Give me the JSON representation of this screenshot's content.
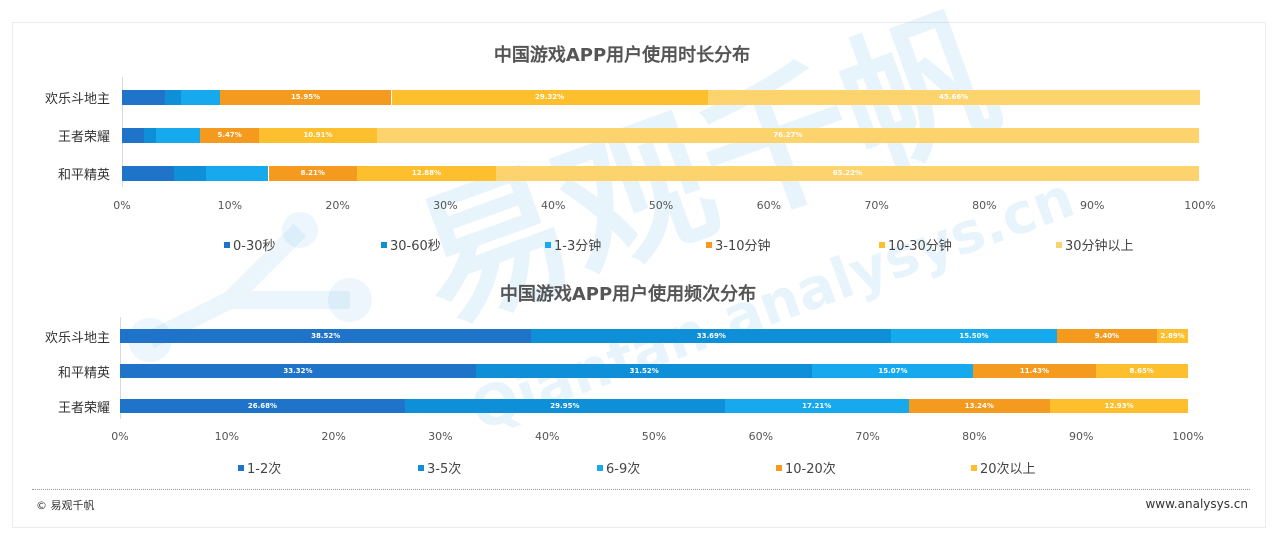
{
  "chart_data": [
    {
      "type": "bar",
      "orientation": "horizontal",
      "stacked": "percent",
      "title": "中国游戏APP用户使用时长分布",
      "categories": [
        "欢乐斗地主",
        "王者荣耀",
        "和平精英"
      ],
      "series": [
        {
          "name": "0-30秒",
          "color": "#1f73c9",
          "values": [
            4.0,
            2.0,
            4.8
          ]
        },
        {
          "name": "30-60秒",
          "color": "#0f8fd8",
          "values": [
            1.5,
            1.2,
            3.0
          ]
        },
        {
          "name": "1-3分钟",
          "color": "#16a9ee",
          "values": [
            3.55,
            4.05,
            5.79
          ]
        },
        {
          "name": "3-10分钟",
          "color": "#f39a1f",
          "values": [
            15.95,
            5.47,
            8.21
          ]
        },
        {
          "name": "10-30分钟",
          "color": "#fdbf2d",
          "values": [
            29.32,
            10.91,
            12.88
          ]
        },
        {
          "name": "30分钟以上",
          "color": "#fdd36e",
          "values": [
            45.66,
            76.27,
            65.22
          ]
        }
      ],
      "data_labels": [
        [
          "",
          "",
          "",
          "15.95%",
          "29.32%",
          "45.66%"
        ],
        [
          "",
          "",
          "",
          "5.47%",
          "10.91%",
          "76.27%"
        ],
        [
          "",
          "",
          "",
          "8.21%",
          "12.88%",
          "65.22%"
        ]
      ],
      "x_ticks": [
        "0%",
        "10%",
        "20%",
        "30%",
        "40%",
        "50%",
        "60%",
        "70%",
        "80%",
        "90%",
        "100%"
      ],
      "xlim": [
        0,
        100
      ],
      "legend_position": "bottom"
    },
    {
      "type": "bar",
      "orientation": "horizontal",
      "stacked": "percent",
      "title": "中国游戏APP用户使用频次分布",
      "categories": [
        "欢乐斗地主",
        "和平精英",
        "王者荣耀"
      ],
      "series": [
        {
          "name": "1-2次",
          "color": "#1f73c9",
          "values": [
            38.52,
            33.32,
            26.68
          ]
        },
        {
          "name": "3-5次",
          "color": "#0f8fd8",
          "values": [
            33.69,
            31.52,
            29.95
          ]
        },
        {
          "name": "6-9次",
          "color": "#16a9ee",
          "values": [
            15.5,
            15.07,
            17.21
          ]
        },
        {
          "name": "10-20次",
          "color": "#f39a1f",
          "values": [
            9.4,
            11.43,
            13.24
          ]
        },
        {
          "name": "20次以上",
          "color": "#fdbf2d",
          "values": [
            2.89,
            8.65,
            12.93
          ]
        }
      ],
      "data_labels": [
        [
          "38.52%",
          "33.69%",
          "15.50%",
          "9.40%",
          "2.89%"
        ],
        [
          "33.32%",
          "31.52%",
          "15.07%",
          "11.43%",
          "8.65%"
        ],
        [
          "26.68%",
          "29.95%",
          "17.21%",
          "13.24%",
          "12.93%"
        ]
      ],
      "x_ticks": [
        "0%",
        "10%",
        "20%",
        "30%",
        "40%",
        "50%",
        "60%",
        "70%",
        "80%",
        "90%",
        "100%"
      ],
      "xlim": [
        0,
        100
      ],
      "legend_position": "bottom"
    }
  ],
  "footer": {
    "copyright": "© 易观千帆",
    "website": "www.analysys.cn"
  },
  "watermark": {
    "text_cn": "易观千帆",
    "text_en": "Qianfan.analysys.cn"
  }
}
